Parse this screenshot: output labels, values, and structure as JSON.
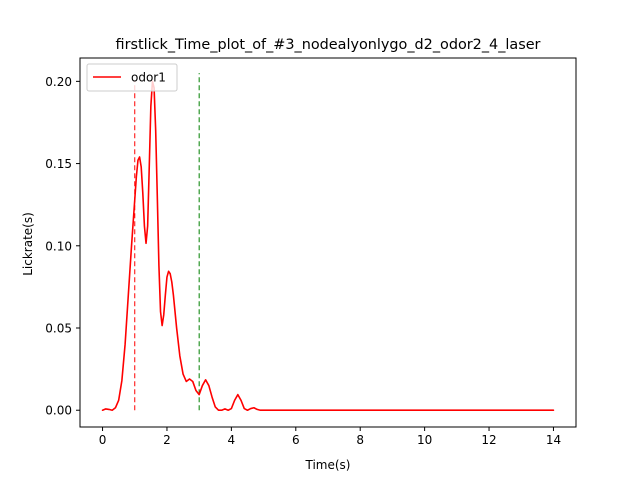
{
  "chart_data": {
    "type": "line",
    "title": "firstlick_Time_plot_of_#3_nodealyonlygo_d2_odor2_4_laser",
    "xlabel": "Time(s)",
    "ylabel": "Lickrate(s)",
    "xlim": [
      -0.7,
      14.7
    ],
    "ylim": [
      -0.0102,
      0.2142
    ],
    "xticks": [
      0,
      2,
      4,
      6,
      8,
      10,
      12,
      14
    ],
    "xtick_labels": [
      "0",
      "2",
      "4",
      "6",
      "8",
      "10",
      "12",
      "14"
    ],
    "yticks": [
      0.0,
      0.05,
      0.1,
      0.15,
      0.2
    ],
    "ytick_labels": [
      "0.00",
      "0.05",
      "0.10",
      "0.15",
      "0.20"
    ],
    "grid": false,
    "legend": {
      "placement": "upper-left",
      "entries": [
        "odor1"
      ]
    },
    "series": [
      {
        "name": "odor1",
        "color": "#ff0000",
        "style": "solid",
        "x": [
          0.0,
          0.1,
          0.2,
          0.3,
          0.4,
          0.5,
          0.6,
          0.7,
          0.8,
          0.9,
          1.0,
          1.05,
          1.1,
          1.15,
          1.2,
          1.25,
          1.3,
          1.35,
          1.4,
          1.45,
          1.5,
          1.55,
          1.6,
          1.65,
          1.7,
          1.75,
          1.8,
          1.85,
          1.9,
          1.95,
          2.0,
          2.05,
          2.1,
          2.15,
          2.2,
          2.3,
          2.4,
          2.5,
          2.6,
          2.7,
          2.8,
          2.9,
          3.0,
          3.1,
          3.2,
          3.3,
          3.4,
          3.5,
          3.6,
          3.7,
          3.8,
          3.9,
          4.0,
          4.1,
          4.2,
          4.3,
          4.4,
          4.5,
          4.6,
          4.7,
          4.8,
          4.9,
          5.0,
          5.5,
          6.0,
          7.0,
          8.0,
          9.0,
          10.0,
          11.0,
          12.0,
          13.0,
          14.0
        ],
        "y": [
          0.0,
          0.0008,
          0.0005,
          0.0,
          0.0015,
          0.006,
          0.018,
          0.04,
          0.07,
          0.1,
          0.128,
          0.142,
          0.152,
          0.154,
          0.148,
          0.132,
          0.112,
          0.1015,
          0.112,
          0.148,
          0.185,
          0.2,
          0.196,
          0.17,
          0.13,
          0.088,
          0.06,
          0.0515,
          0.058,
          0.07,
          0.081,
          0.0845,
          0.083,
          0.078,
          0.07,
          0.05,
          0.033,
          0.022,
          0.0175,
          0.019,
          0.0175,
          0.012,
          0.0095,
          0.015,
          0.0185,
          0.015,
          0.008,
          0.002,
          0.0,
          0.0,
          0.0008,
          0.0,
          0.001,
          0.006,
          0.0095,
          0.006,
          0.001,
          0.0,
          0.001,
          0.0015,
          0.0005,
          0.0,
          0.0,
          0.0,
          0.0,
          0.0,
          0.0,
          0.0,
          0.0,
          0.0,
          0.0,
          0.0,
          0.0
        ]
      }
    ],
    "markers": [
      {
        "x": 1.0,
        "y_range": [
          0.0,
          0.2
        ],
        "color": "#ff0000",
        "style": "dashed"
      },
      {
        "x": 3.0,
        "y_range": [
          0.0,
          0.205
        ],
        "color": "#008000",
        "style": "dashed"
      }
    ]
  }
}
